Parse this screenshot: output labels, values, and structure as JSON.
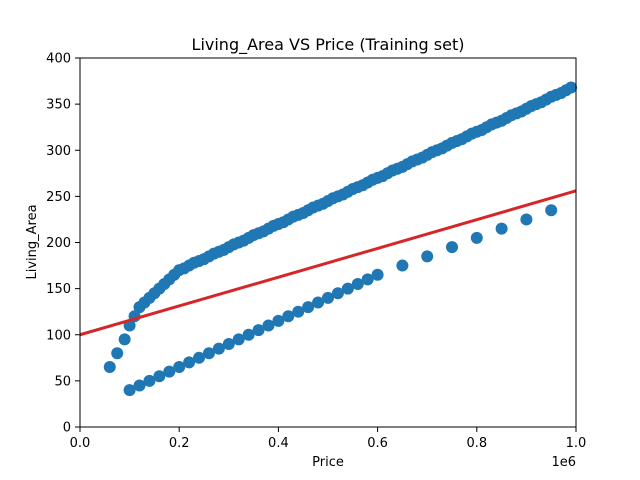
{
  "chart_data": {
    "type": "scatter",
    "title": "Living_Area VS Price (Training set)",
    "xlabel": "Price",
    "ylabel": "Living_Area",
    "x_multiplier_label": "1e6",
    "xlim": [
      0,
      1000000
    ],
    "ylim": [
      0,
      400
    ],
    "x_ticks": [
      0,
      200000,
      400000,
      600000,
      800000,
      1000000
    ],
    "x_tick_labels": [
      "0.0",
      "0.2",
      "0.4",
      "0.6",
      "0.8",
      "1.0"
    ],
    "y_ticks": [
      0,
      50,
      100,
      150,
      200,
      250,
      300,
      350,
      400
    ],
    "y_tick_labels": [
      "0",
      "50",
      "100",
      "150",
      "200",
      "250",
      "300",
      "350",
      "400"
    ],
    "grid": false,
    "scatter_color": "#1f77b4",
    "fit_line_color": "#d62728",
    "series": [
      {
        "type": "scatter",
        "x": [
          60000,
          75000,
          90000,
          100000,
          110000,
          120000,
          130000,
          140000,
          150000,
          160000,
          170000,
          180000,
          190000,
          200000,
          210000,
          220000,
          230000,
          240000,
          250000,
          260000,
          270000,
          280000,
          290000,
          300000,
          310000,
          320000,
          330000,
          340000,
          350000,
          360000,
          370000,
          380000,
          390000,
          400000,
          410000,
          420000,
          430000,
          440000,
          450000,
          460000,
          470000,
          480000,
          490000,
          500000,
          510000,
          520000,
          530000,
          540000,
          550000,
          560000,
          570000,
          580000,
          590000,
          600000,
          610000,
          620000,
          630000,
          640000,
          650000,
          660000,
          670000,
          680000,
          690000,
          700000,
          710000,
          720000,
          730000,
          740000,
          750000,
          760000,
          770000,
          780000,
          790000,
          800000,
          810000,
          820000,
          830000,
          840000,
          850000,
          860000,
          870000,
          880000,
          890000,
          900000,
          910000,
          920000,
          930000,
          940000,
          950000,
          960000,
          970000,
          980000,
          990000,
          100000,
          120000,
          140000,
          160000,
          180000,
          200000,
          220000,
          240000,
          260000,
          280000,
          300000,
          320000,
          340000,
          360000,
          380000,
          400000,
          420000,
          440000,
          460000,
          480000,
          500000,
          520000,
          540000,
          560000,
          580000,
          600000,
          650000,
          700000,
          750000,
          800000,
          850000,
          900000,
          950000
        ],
        "y": [
          65,
          80,
          95,
          110,
          120,
          130,
          135,
          140,
          145,
          150,
          155,
          160,
          165,
          170,
          172,
          175,
          178,
          180,
          182,
          185,
          188,
          190,
          192,
          195,
          198,
          200,
          202,
          205,
          208,
          210,
          212,
          215,
          218,
          220,
          222,
          225,
          228,
          230,
          232,
          235,
          238,
          240,
          242,
          245,
          248,
          250,
          252,
          255,
          258,
          260,
          262,
          265,
          268,
          270,
          272,
          275,
          278,
          280,
          282,
          285,
          288,
          290,
          292,
          295,
          298,
          300,
          302,
          305,
          308,
          310,
          312,
          315,
          318,
          320,
          322,
          325,
          328,
          330,
          332,
          335,
          338,
          340,
          342,
          345,
          348,
          350,
          352,
          355,
          358,
          360,
          362,
          365,
          368,
          40,
          45,
          50,
          55,
          60,
          65,
          70,
          75,
          80,
          85,
          90,
          95,
          100,
          105,
          110,
          115,
          120,
          125,
          130,
          135,
          140,
          145,
          150,
          155,
          160,
          165,
          175,
          185,
          195,
          205,
          215,
          225,
          235
        ]
      },
      {
        "type": "line",
        "x": [
          0,
          1000000
        ],
        "y": [
          100,
          256
        ]
      }
    ]
  }
}
